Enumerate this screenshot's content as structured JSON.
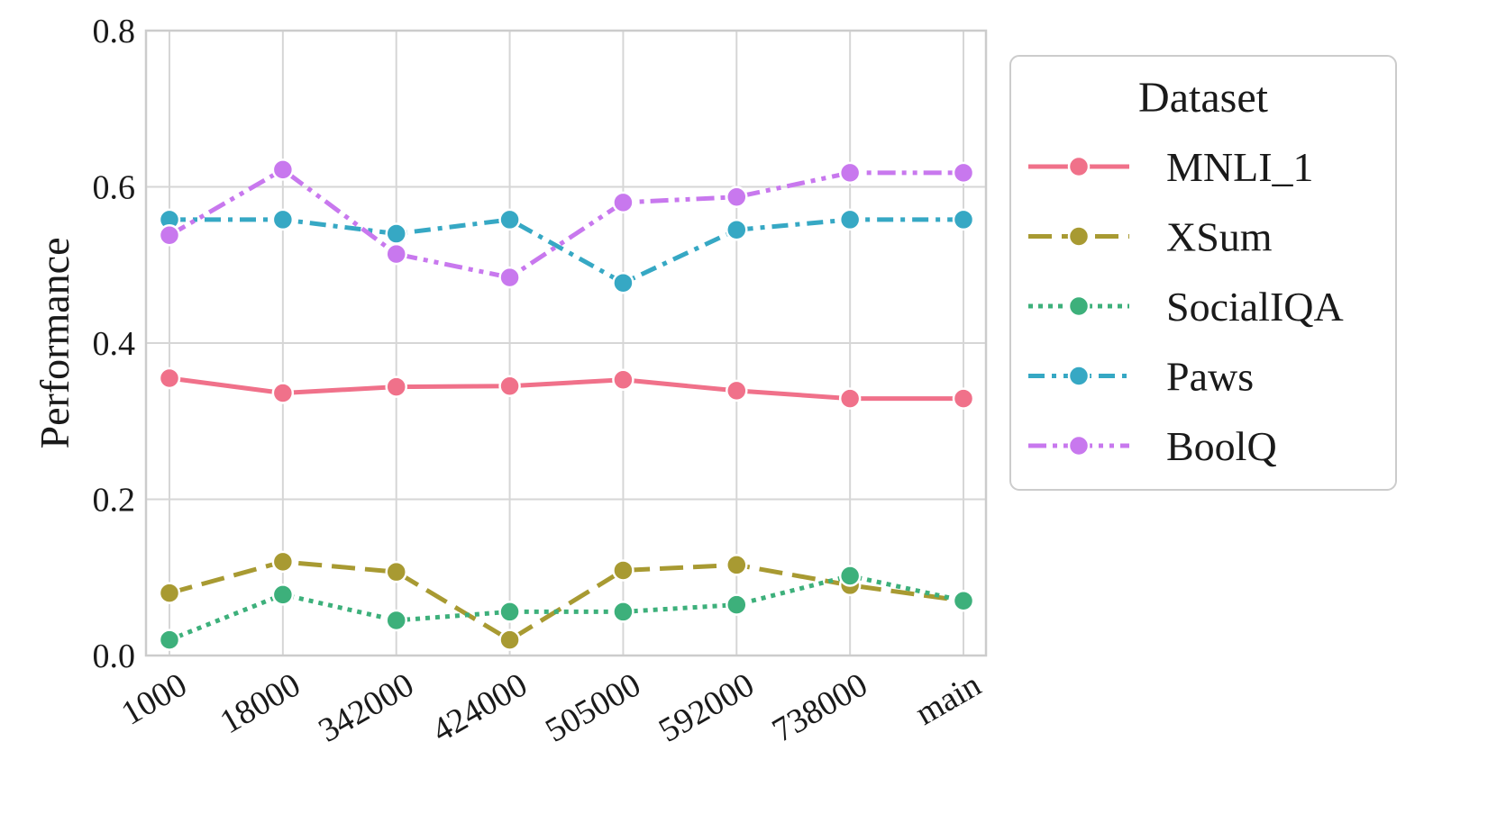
{
  "chart_data": {
    "type": "line",
    "title": "",
    "xlabel": "",
    "ylabel": "Performance",
    "categories": [
      "1000",
      "18000",
      "342000",
      "424000",
      "505000",
      "592000",
      "738000",
      "main"
    ],
    "ylim": [
      0.0,
      0.8
    ],
    "yticks": [
      "0.0",
      "0.2",
      "0.4",
      "0.6",
      "0.8"
    ],
    "grid": true,
    "legend": {
      "title": "Dataset",
      "placement": "outside-right-top"
    },
    "series": [
      {
        "name": "MNLI_1",
        "color": "#f0718a",
        "dash": "solid",
        "values": [
          0.355,
          0.336,
          0.344,
          0.345,
          0.353,
          0.339,
          0.329,
          0.329
        ]
      },
      {
        "name": "XSum",
        "color": "#a89a32",
        "dash": "dashed",
        "values": [
          0.08,
          0.12,
          0.107,
          0.02,
          0.109,
          0.116,
          0.09,
          0.07
        ]
      },
      {
        "name": "SocialIQA",
        "color": "#3db07b",
        "dash": "dotted",
        "values": [
          0.02,
          0.078,
          0.045,
          0.056,
          0.056,
          0.065,
          0.102,
          0.07
        ]
      },
      {
        "name": "Paws",
        "color": "#36a8c4",
        "dash": "dashdot",
        "values": [
          0.558,
          0.558,
          0.54,
          0.558,
          0.477,
          0.545,
          0.558,
          0.558
        ]
      },
      {
        "name": "BoolQ",
        "color": "#c878ee",
        "dash": "dashdotdot",
        "values": [
          0.538,
          0.622,
          0.514,
          0.484,
          0.58,
          0.587,
          0.618,
          0.618
        ]
      }
    ]
  }
}
